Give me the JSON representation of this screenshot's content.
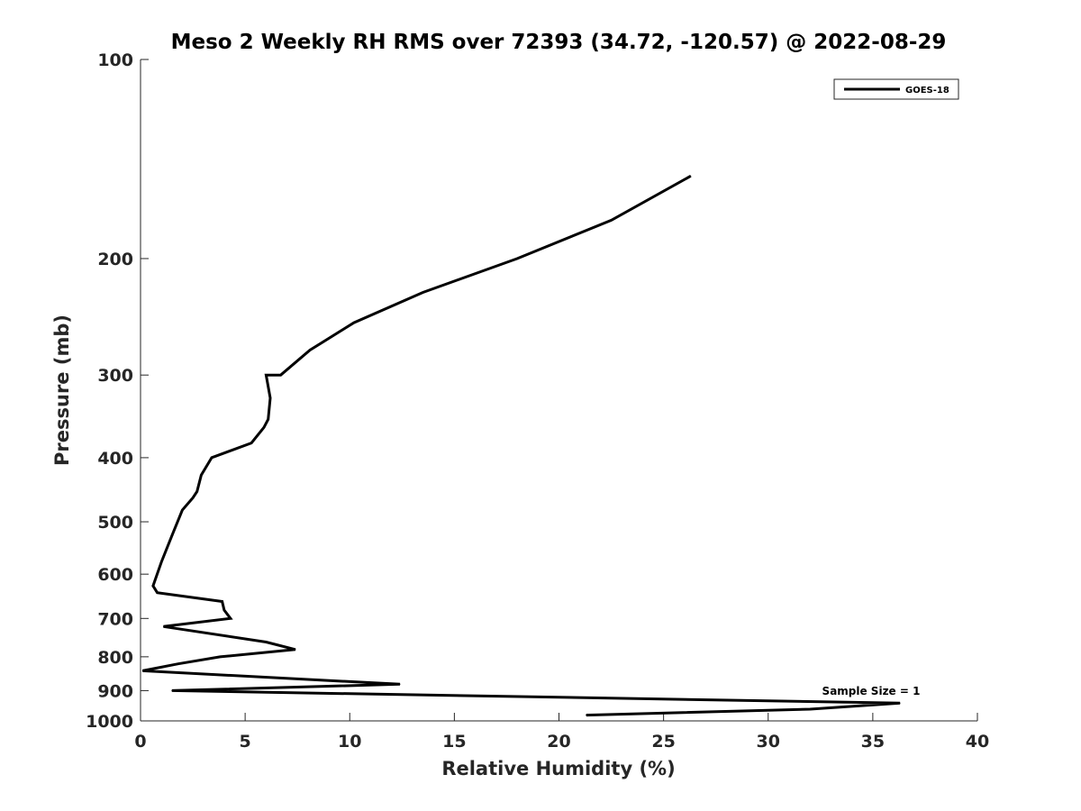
{
  "chart_data": {
    "type": "line",
    "title": "Meso 2 Weekly RH RMS over 72393 (34.72, -120.57) @ 2022-08-29",
    "xlabel": "Relative Humidity (%)",
    "ylabel": "Pressure (mb)",
    "xlim": [
      0,
      40
    ],
    "ylim": [
      100,
      1000
    ],
    "y_scale": "log",
    "y_reversed": true,
    "x_ticks": [
      "0",
      "5",
      "10",
      "15",
      "20",
      "25",
      "30",
      "35",
      "40"
    ],
    "y_ticks": [
      "100",
      "200",
      "300",
      "400",
      "500",
      "600",
      "700",
      "800",
      "900",
      "1000"
    ],
    "grid": false,
    "legend_position": "top-right",
    "annotation": "Sample Size = 1",
    "series": [
      {
        "name": "GOES-18",
        "color": "#000000",
        "points": [
          {
            "x": 26.3,
            "p": 150
          },
          {
            "x": 22.5,
            "p": 175
          },
          {
            "x": 18.0,
            "p": 200
          },
          {
            "x": 13.5,
            "p": 225
          },
          {
            "x": 10.2,
            "p": 250
          },
          {
            "x": 8.1,
            "p": 275
          },
          {
            "x": 6.7,
            "p": 300
          },
          {
            "x": 6.0,
            "p": 300
          },
          {
            "x": 6.2,
            "p": 325
          },
          {
            "x": 6.1,
            "p": 350
          },
          {
            "x": 5.9,
            "p": 360
          },
          {
            "x": 5.3,
            "p": 380
          },
          {
            "x": 3.4,
            "p": 400
          },
          {
            "x": 2.9,
            "p": 425
          },
          {
            "x": 2.7,
            "p": 450
          },
          {
            "x": 2.5,
            "p": 460
          },
          {
            "x": 2.0,
            "p": 480
          },
          {
            "x": 1.5,
            "p": 525
          },
          {
            "x": 1.0,
            "p": 575
          },
          {
            "x": 0.6,
            "p": 625
          },
          {
            "x": 0.8,
            "p": 640
          },
          {
            "x": 3.9,
            "p": 660
          },
          {
            "x": 4.0,
            "p": 680
          },
          {
            "x": 4.3,
            "p": 700
          },
          {
            "x": 1.1,
            "p": 720
          },
          {
            "x": 6.0,
            "p": 760
          },
          {
            "x": 7.4,
            "p": 780
          },
          {
            "x": 3.8,
            "p": 800
          },
          {
            "x": 1.8,
            "p": 820
          },
          {
            "x": 0.1,
            "p": 840
          },
          {
            "x": 12.4,
            "p": 880
          },
          {
            "x": 1.5,
            "p": 900
          },
          {
            "x": 36.3,
            "p": 940
          },
          {
            "x": 32.0,
            "p": 960
          },
          {
            "x": 21.3,
            "p": 980
          }
        ]
      }
    ]
  }
}
